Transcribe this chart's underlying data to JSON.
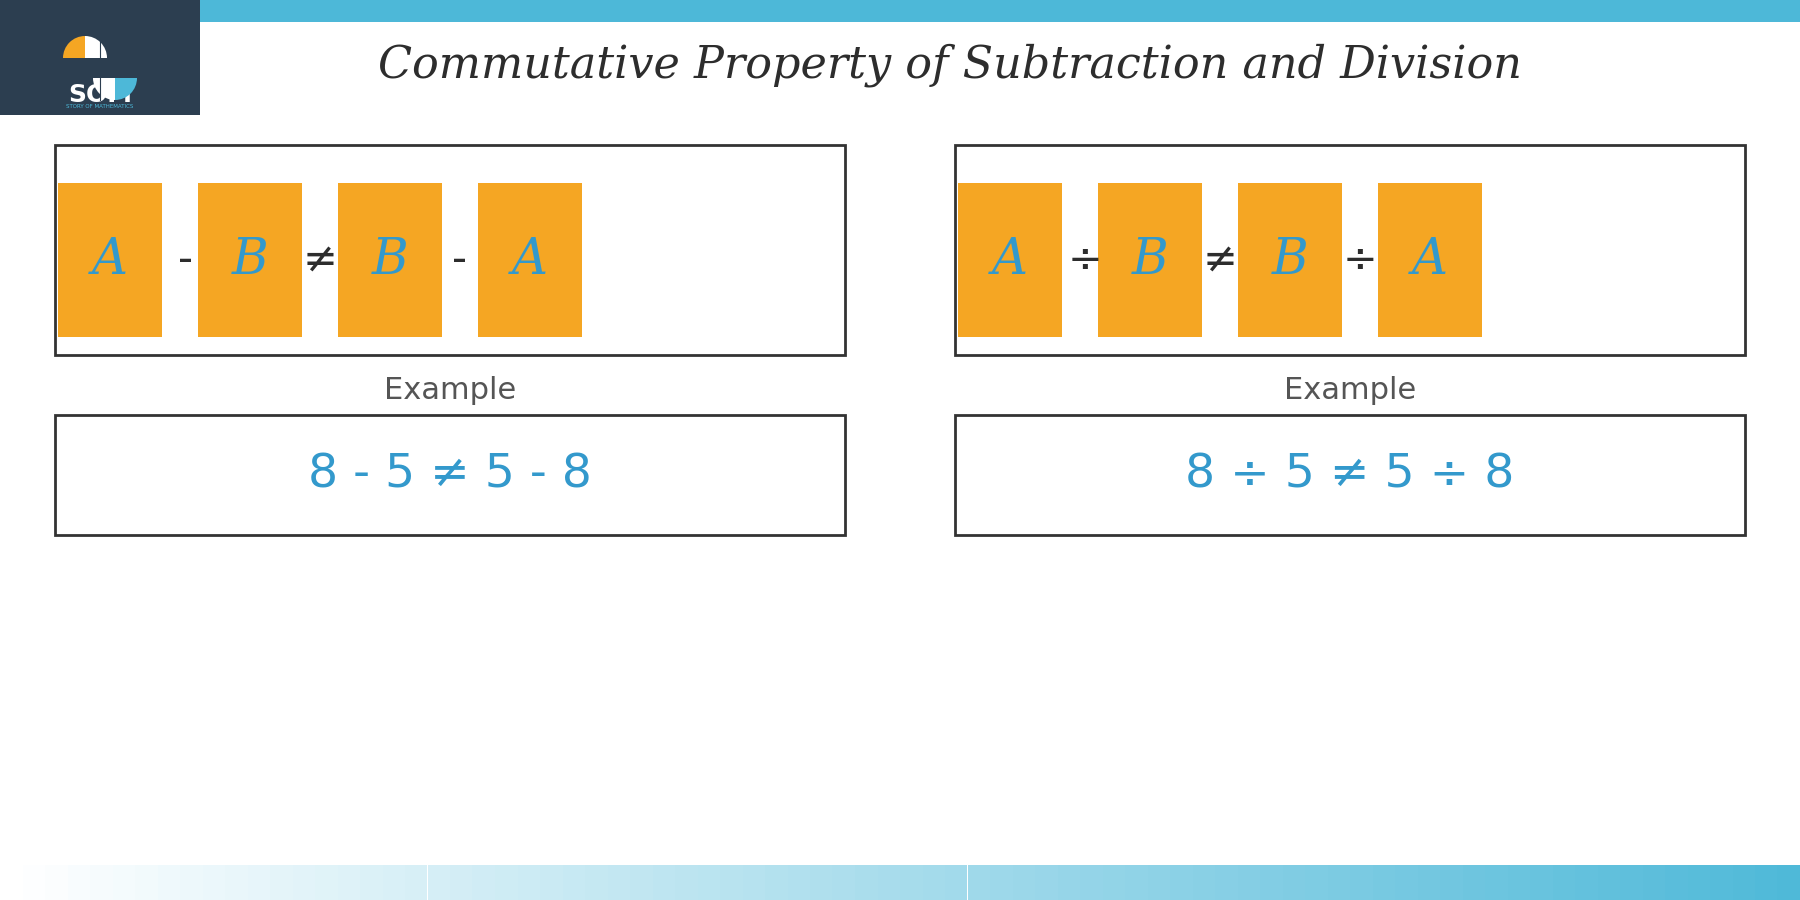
{
  "title": "Commutative Property of Subtraction and Division",
  "title_fontsize": 32,
  "title_color": "#2d2d2d",
  "background_color": "#ffffff",
  "header_bg_color": "#2c3e50",
  "accent_color": "#4db8d8",
  "box_color": "#f5a623",
  "box_text_color": "#3399cc",
  "operator_color": "#2d2d2d",
  "example_color": "#3399cc",
  "subtraction": {
    "items": [
      "A",
      "-",
      "B",
      "≠",
      "B",
      "-",
      "A"
    ],
    "example": "8 - 5 ≠ 5 - 8"
  },
  "division": {
    "items": [
      "A",
      "÷",
      "B",
      "≠",
      "B",
      "÷",
      "A"
    ],
    "example": "8 ÷ 5 ≠ 5 ÷ 8"
  },
  "example_label": "Example"
}
